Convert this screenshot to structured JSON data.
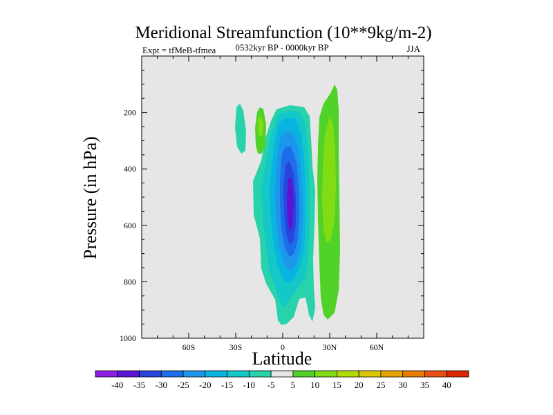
{
  "chart_data": {
    "type": "contour",
    "title": "Meridional Streamfunction (10**9kg/m-2)",
    "subtitle_left": "Expt = tfMeB-tfmea",
    "subtitle_center": "0532kyr BP - 0000kyr BP",
    "subtitle_right": "JJA",
    "xlabel": "Latitude",
    "ylabel": "Pressure (in hPa)",
    "xlim": [
      -90,
      90
    ],
    "ylim": [
      1000,
      0
    ],
    "x_ticks": [
      -60,
      -30,
      0,
      30,
      60
    ],
    "x_tick_labels": [
      "60S",
      "30S",
      "0",
      "30N",
      "60N"
    ],
    "y_ticks": [
      200,
      400,
      600,
      800,
      1000
    ],
    "y_tick_labels": [
      "200",
      "400",
      "600",
      "800",
      "1000"
    ],
    "background_color": "#e6e6e6",
    "colorbar": {
      "labels": [
        "-40",
        "-35",
        "-30",
        "-25",
        "-20",
        "-15",
        "-10",
        "-5",
        "5",
        "10",
        "15",
        "20",
        "25",
        "30",
        "35",
        "40"
      ],
      "colors": [
        "#8c1ee6",
        "#5a14d2",
        "#2846dc",
        "#1e6eeb",
        "#1e96eb",
        "#0ab4e1",
        "#14c8c8",
        "#28d2aa",
        "#e6e6e6",
        "#50d228",
        "#82dc14",
        "#b4dc00",
        "#dcc800",
        "#e6a500",
        "#e67d00",
        "#e65014",
        "#dc2800"
      ]
    },
    "features": [
      {
        "name": "central negative cell",
        "lat_range": [
          -18,
          22
        ],
        "p_range": [
          110,
          960
        ],
        "min_value": -35
      },
      {
        "name": "positive cell north",
        "lat_range": [
          22,
          40
        ],
        "p_range": [
          80,
          950
        ],
        "max_value": 15
      },
      {
        "name": "positive blob south",
        "lat_range": [
          -17,
          -8
        ],
        "p_range": [
          180,
          265
        ],
        "max_value": 15
      },
      {
        "name": "negative blob far south",
        "lat_range": [
          -30,
          -22
        ],
        "p_range": [
          170,
          300
        ],
        "min_value": -10
      }
    ]
  }
}
